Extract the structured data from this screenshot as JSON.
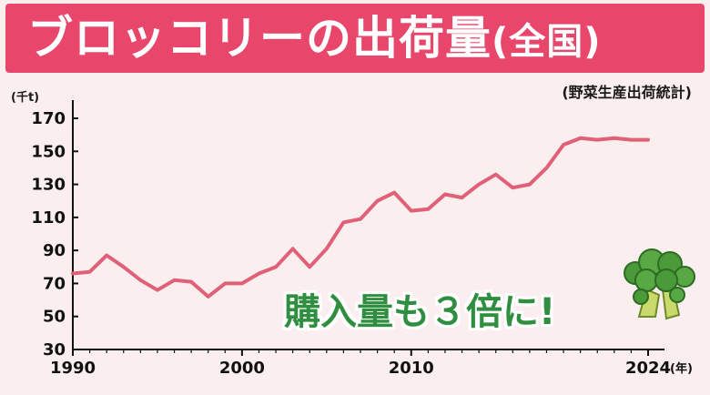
{
  "title": {
    "main": "ブロッコリーの出荷量",
    "sub": "(全国)"
  },
  "source": "(野菜生産出荷統計)",
  "callout": "購入量も３倍に!",
  "colors": {
    "banner": "#e8466a",
    "line": "#e06077",
    "callout": "#2f8e3f",
    "background": "#fbeeee"
  },
  "illustration": "broccoli-icon",
  "chart_data": {
    "type": "line",
    "title": "ブロッコリーの出荷量(全国)",
    "ylabel": "(千t)",
    "xlabel": "(年)",
    "ylim": [
      30,
      170
    ],
    "xlim": [
      1990,
      2024
    ],
    "yticks": [
      "30",
      "50",
      "70",
      "90",
      "110",
      "130",
      "150",
      "170"
    ],
    "xticks": [
      {
        "value": 1990,
        "label": "1990"
      },
      {
        "value": 2000,
        "label": "2000"
      },
      {
        "value": 2010,
        "label": "2010"
      },
      {
        "value": 2024,
        "label": "2024"
      }
    ],
    "x_suffix": "(年)",
    "grid": false,
    "series": [
      {
        "x": [
          1990,
          1991,
          1992,
          1993,
          1994,
          1995,
          1996,
          1997,
          1998,
          1999,
          2000,
          2001,
          2002,
          2003,
          2004,
          2005,
          2006,
          2007,
          2008,
          2009,
          2010,
          2011,
          2012,
          2013,
          2014,
          2015,
          2016,
          2017,
          2018,
          2019,
          2020,
          2021,
          2022,
          2023,
          2024
        ],
        "values": [
          76,
          77,
          87,
          80,
          72,
          66,
          72,
          71,
          62,
          70,
          70,
          76,
          80,
          91,
          80,
          91,
          107,
          109,
          120,
          125,
          114,
          115,
          124,
          122,
          130,
          136,
          128,
          130,
          140,
          154,
          158,
          157,
          158,
          157,
          157
        ]
      }
    ]
  }
}
